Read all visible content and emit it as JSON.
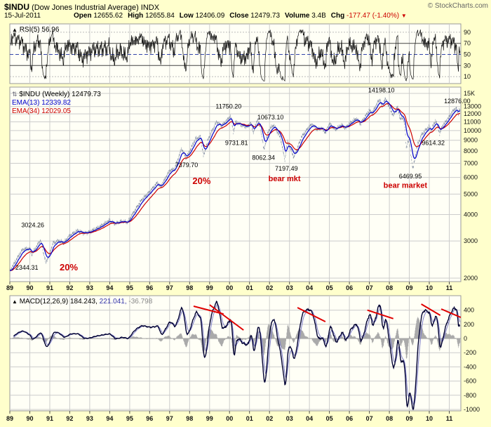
{
  "header": {
    "symbol": "$INDU",
    "name": "(Dow Jones Industrial Average)",
    "exchange": "INDX",
    "credit": "© StockCharts.com",
    "date": "15-Jul-2011",
    "quote": [
      {
        "label": "Open",
        "value": "12655.62"
      },
      {
        "label": "High",
        "value": "12655.84"
      },
      {
        "label": "Low",
        "value": "12406.09"
      },
      {
        "label": "Close",
        "value": "12479.73"
      },
      {
        "label": "Volume",
        "value": "3.4B"
      },
      {
        "label": "Chg",
        "value": "-177.47 (-1.40%)"
      }
    ]
  },
  "icons": {
    "panel_up": "▲",
    "panel_reorder": "⇅",
    "down_triangle": "▼"
  },
  "panels": {
    "rsi": {
      "label": "RSI(5)",
      "value": "56.96"
    },
    "main": {
      "label": "$INDU (Weekly)",
      "value": "12479.73",
      "ema1": {
        "label": "EMA(13)",
        "value": "12339.82"
      },
      "ema2": {
        "label": "EMA(34)",
        "value": "12029.05"
      }
    },
    "macd": {
      "label": "MACD(12,26,9)",
      "values": [
        "184.243,",
        "221.041,",
        "-36.798"
      ]
    }
  },
  "chart_data": {
    "type": "line",
    "title": "$INDU (Dow Jones Industrial Average) INDX — weekly, 1989–2011, log scale",
    "x": [
      {
        "year": 1989,
        "label": "89"
      },
      {
        "year": 1990,
        "label": "90"
      },
      {
        "year": 1991,
        "label": "91"
      },
      {
        "year": 1992,
        "label": "92"
      },
      {
        "year": 1993,
        "label": "93"
      },
      {
        "year": 1994,
        "label": "94"
      },
      {
        "year": 1995,
        "label": "95"
      },
      {
        "year": 1996,
        "label": "96"
      },
      {
        "year": 1997,
        "label": "97"
      },
      {
        "year": 1998,
        "label": "98"
      },
      {
        "year": 1999,
        "label": "99"
      },
      {
        "year": 2000,
        "label": "00"
      },
      {
        "year": 2001,
        "label": "01"
      },
      {
        "year": 2002,
        "label": "02"
      },
      {
        "year": 2003,
        "label": "03"
      },
      {
        "year": 2004,
        "label": "04"
      },
      {
        "year": 2005,
        "label": "05"
      },
      {
        "year": 2006,
        "label": "06"
      },
      {
        "year": 2007,
        "label": "07"
      },
      {
        "year": 2008,
        "label": "08"
      },
      {
        "year": 2009,
        "label": "09"
      },
      {
        "year": 2010,
        "label": "10"
      },
      {
        "year": 2011,
        "label": "11"
      }
    ],
    "panels": [
      {
        "id": "rsi",
        "indicator": "RSI(5)",
        "last": 56.96,
        "range": [
          0,
          100
        ],
        "gridlines": [
          90,
          70,
          50,
          30,
          10
        ]
      },
      {
        "id": "price",
        "symbol": "$INDU",
        "timeframe": "Weekly",
        "last": 12479.73,
        "scale": "log",
        "range": [
          2000,
          15000
        ],
        "axis_ticks": [
          {
            "v": 15000,
            "label": "15K"
          },
          {
            "v": 13000,
            "label": "13000"
          },
          {
            "v": 12000,
            "label": "12000"
          },
          {
            "v": 11000,
            "label": "11000"
          },
          {
            "v": 10000,
            "label": "10000"
          },
          {
            "v": 9000,
            "label": "9000"
          },
          {
            "v": 8000,
            "label": "8000"
          },
          {
            "v": 7000,
            "label": "7000"
          },
          {
            "v": 6000,
            "label": "6000"
          },
          {
            "v": 5000,
            "label": "5000"
          },
          {
            "v": 4000,
            "label": "4000"
          },
          {
            "v": 3000,
            "label": "3000"
          },
          {
            "v": 2000,
            "label": "2000"
          }
        ],
        "overlays": [
          {
            "name": "EMA(13)",
            "last": 12339.82,
            "color": "#0000CC"
          },
          {
            "name": "EMA(34)",
            "last": 12029.05,
            "color": "#CC0000"
          }
        ],
        "anchors": [
          [
            1989.0,
            2150
          ],
          [
            1989.3,
            2420
          ],
          [
            1989.6,
            2700
          ],
          [
            1989.75,
            2750
          ],
          [
            1990.0,
            2753
          ],
          [
            1990.1,
            2590
          ],
          [
            1990.45,
            2935
          ],
          [
            1990.53,
            3024
          ],
          [
            1990.62,
            2820
          ],
          [
            1990.8,
            2365
          ],
          [
            1991.0,
            2610
          ],
          [
            1991.15,
            2920
          ],
          [
            1991.45,
            3004
          ],
          [
            1991.7,
            2935
          ],
          [
            1991.99,
            3168
          ],
          [
            1992.4,
            3360
          ],
          [
            1992.7,
            3260
          ],
          [
            1993.0,
            3310
          ],
          [
            1993.5,
            3500
          ],
          [
            1993.99,
            3754
          ],
          [
            1994.25,
            3620
          ],
          [
            1994.6,
            3720
          ],
          [
            1994.9,
            3674
          ],
          [
            1995.2,
            4100
          ],
          [
            1995.6,
            4700
          ],
          [
            1995.99,
            5117
          ],
          [
            1996.4,
            5680
          ],
          [
            1996.55,
            5400
          ],
          [
            1996.99,
            6448
          ],
          [
            1997.25,
            6580
          ],
          [
            1997.6,
            8222
          ],
          [
            1997.83,
            7379
          ],
          [
            1998.3,
            9150
          ],
          [
            1998.55,
            9337
          ],
          [
            1998.7,
            7550
          ],
          [
            1998.95,
            9200
          ],
          [
            1999.35,
            11000
          ],
          [
            1999.6,
            10500
          ],
          [
            1999.99,
            11497
          ],
          [
            2000.05,
            11750
          ],
          [
            2000.2,
            9790
          ],
          [
            2000.3,
            11000
          ],
          [
            2000.65,
            10550
          ],
          [
            2000.9,
            10400
          ],
          [
            2001.05,
            10900
          ],
          [
            2001.2,
            9800
          ],
          [
            2001.4,
            11300
          ],
          [
            2001.55,
            10300
          ],
          [
            2001.72,
            8100
          ],
          [
            2001.95,
            10000
          ],
          [
            2002.2,
            10635
          ],
          [
            2002.55,
            9250
          ],
          [
            2002.77,
            7250
          ],
          [
            2002.9,
            8900
          ],
          [
            2003.1,
            8000
          ],
          [
            2003.22,
            7450
          ],
          [
            2003.6,
            9300
          ],
          [
            2003.99,
            10450
          ],
          [
            2004.15,
            10700
          ],
          [
            2004.4,
            10100
          ],
          [
            2004.6,
            10300
          ],
          [
            2004.82,
            9750
          ],
          [
            2004.99,
            10800
          ],
          [
            2005.3,
            10100
          ],
          [
            2005.6,
            10650
          ],
          [
            2005.8,
            10250
          ],
          [
            2005.99,
            10780
          ],
          [
            2006.35,
            11400
          ],
          [
            2006.55,
            10750
          ],
          [
            2006.99,
            12450
          ],
          [
            2007.15,
            12100
          ],
          [
            2007.42,
            13650
          ],
          [
            2007.55,
            14000
          ],
          [
            2007.63,
            12850
          ],
          [
            2007.78,
            14164
          ],
          [
            2007.95,
            13260
          ],
          [
            2008.2,
            11750
          ],
          [
            2008.4,
            13000
          ],
          [
            2008.55,
            11350
          ],
          [
            2008.7,
            11500
          ],
          [
            2008.78,
            10300
          ],
          [
            2008.85,
            8175
          ],
          [
            2008.92,
            8850
          ],
          [
            2009.0,
            9000
          ],
          [
            2009.05,
            8100
          ],
          [
            2009.18,
            6547
          ],
          [
            2009.4,
            8500
          ],
          [
            2009.6,
            9500
          ],
          [
            2009.8,
            10000
          ],
          [
            2009.99,
            10428
          ],
          [
            2010.1,
            10012
          ],
          [
            2010.32,
            11205
          ],
          [
            2010.52,
            9686
          ],
          [
            2010.65,
            10450
          ],
          [
            2010.85,
            11100
          ],
          [
            2010.99,
            11578
          ],
          [
            2011.15,
            12250
          ],
          [
            2011.35,
            12810
          ],
          [
            2011.45,
            11900
          ],
          [
            2011.5,
            12700
          ],
          [
            2011.54,
            12480
          ]
        ],
        "annotations": [
          {
            "text": "3024.26",
            "year": 1990.15,
            "price": 3480,
            "color": "#000000",
            "size": 9
          },
          {
            "text": "2344.31",
            "year": 1989.85,
            "price": 2190,
            "color": "#000000",
            "size": 9
          },
          {
            "text": "20%",
            "year": 1991.95,
            "price": 2175,
            "color": "#CC0000",
            "size": 13,
            "bold": true
          },
          {
            "text": "7379.70",
            "year": 1997.85,
            "price": 6700,
            "color": "#000000",
            "size": 9
          },
          {
            "text": "20%",
            "year": 1998.6,
            "price": 5590,
            "color": "#CC0000",
            "size": 13,
            "bold": true
          },
          {
            "text": "9731.81",
            "year": 2000.35,
            "price": 8550,
            "color": "#000000",
            "size": 9
          },
          {
            "text": "11750.20",
            "year": 1999.95,
            "price": 12700,
            "color": "#000000",
            "size": 9
          },
          {
            "text": "10673.10",
            "year": 2002.05,
            "price": 11310,
            "color": "#000000",
            "size": 9
          },
          {
            "text": "8062.34",
            "year": 2001.7,
            "price": 7260,
            "color": "#000000",
            "size": 9
          },
          {
            "text": "7197.49",
            "year": 2002.85,
            "price": 6460,
            "color": "#000000",
            "size": 9
          },
          {
            "text": "bear mkt",
            "year": 2002.75,
            "price": 5760,
            "color": "#CC0000",
            "size": 11,
            "bold": true
          },
          {
            "text": "14198.10",
            "year": 2007.6,
            "price": 15200,
            "color": "#000000",
            "size": 9
          },
          {
            "text": "6469.95",
            "year": 2009.05,
            "price": 5940,
            "color": "#000000",
            "size": 9
          },
          {
            "text": "bear market",
            "year": 2008.8,
            "price": 5350,
            "color": "#CC0000",
            "size": 11,
            "bold": true
          },
          {
            "text": "9614.32",
            "year": 2010.2,
            "price": 8550,
            "color": "#000000",
            "size": 9
          },
          {
            "text": "12876.00",
            "year": 2011.4,
            "price": 13470,
            "color": "#000000",
            "size": 9
          }
        ]
      },
      {
        "id": "macd",
        "indicator": "MACD(12,26,9)",
        "last": [
          184.243,
          221.041,
          -36.798
        ],
        "range": [
          -1000,
          480
        ],
        "axis_ticks": [
          400,
          200,
          0,
          -200,
          -400,
          -600,
          -800,
          -1000
        ],
        "trendlines": [
          [
            1998.2,
            455,
            1999.7,
            346
          ],
          [
            1999.0,
            475,
            2000.7,
            119
          ],
          [
            2003.4,
            436,
            2004.8,
            238
          ],
          [
            2006.9,
            400,
            2008.2,
            280
          ],
          [
            2009.6,
            485,
            2010.55,
            327
          ],
          [
            2010.6,
            416,
            2011.58,
            297
          ]
        ]
      }
    ]
  }
}
